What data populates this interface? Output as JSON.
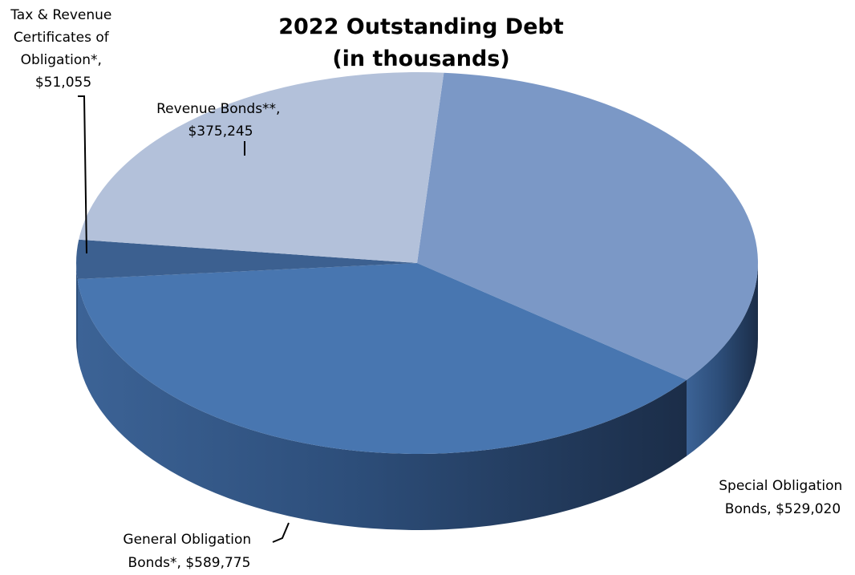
{
  "chart_data": {
    "type": "pie",
    "title": "2022 Outstanding Debt",
    "subtitle": "(in thousands)",
    "slices": [
      {
        "category": "Special Obligation Bonds",
        "value": 529020,
        "color": "#7b98c6",
        "label_lines": [
          "Special Obligation",
          "Bonds,  $529,020"
        ]
      },
      {
        "category": "General Obligation Bonds*",
        "value": 589775,
        "color": "#4876b0",
        "label_lines": [
          "General Obligation",
          "Bonds*,  $589,775"
        ]
      },
      {
        "category": "Tax & Revenue Certificates of Obligation*",
        "value": 51055,
        "color": "#3c6090",
        "label_lines": [
          "Tax & Revenue",
          "Certificates of",
          "Obligation*,",
          "$51,055"
        ]
      },
      {
        "category": "Revenue Bonds**",
        "value": 375245,
        "color": "#b3c1da",
        "label_lines": [
          "Revenue Bonds**,",
          "$375,245"
        ]
      }
    ]
  }
}
